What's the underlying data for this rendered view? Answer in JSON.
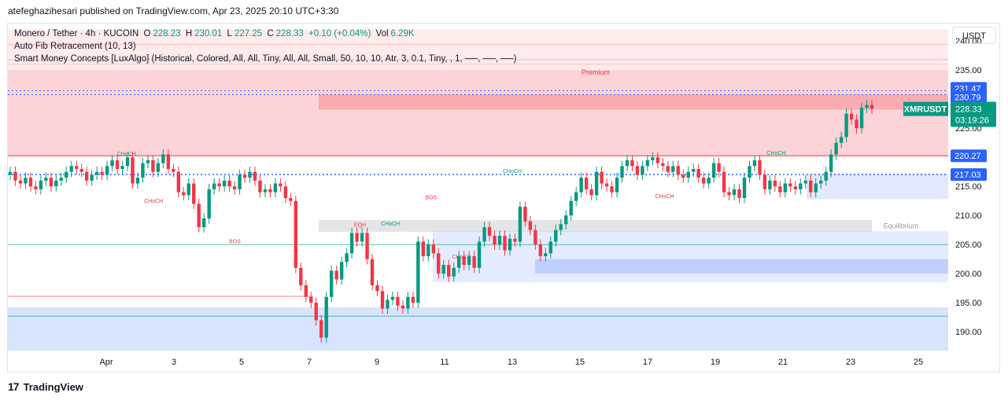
{
  "publisher": "atefeghazihesari published on TradingView.com, Apr 23, 2025 20:10 UTC+3:30",
  "legend": {
    "symbol": "Monero / Tether · 4h · KUCOIN",
    "open_label": "O",
    "open": "228.23",
    "high_label": "H",
    "high": "230.01",
    "low_label": "L",
    "low": "227.25",
    "close_label": "C",
    "close": "228.33",
    "change": "+0.10 (+0.04%)",
    "vol_label": "Vol",
    "vol": "6.29K",
    "indicator1": "Auto Fib Retracement (10, 13)",
    "indicator2": "Smart Money Concepts [LuxAlgo] (Historical, Colored, All, All, Tiny, All, All, Small, 50, 10, 10, Atr, 3, 0.1, Tiny, , 1, ──, ──, ──)"
  },
  "currency": "USDT",
  "footer": {
    "brand": "TradingView"
  },
  "colors": {
    "up": "#089981",
    "down": "#f23645",
    "dotted": "#2962ff",
    "premium": "#f23645",
    "discount": "#2962ff"
  },
  "chart_data": {
    "type": "candlestick",
    "symbol": "XMRUSDT",
    "ylim": [
      189,
      243
    ],
    "y_ticks": [
      240,
      235,
      230,
      225,
      220,
      215,
      210,
      205,
      200,
      195,
      190
    ],
    "x_ticks": [
      "Apr",
      "3",
      "5",
      "7",
      "9",
      "11",
      "13",
      "15",
      "17",
      "19",
      "21",
      "23",
      "25"
    ],
    "price_labels": [
      {
        "value": 231.47,
        "text": "231.47",
        "kind": "level"
      },
      {
        "value": 230.79,
        "text": "230.79",
        "kind": "level"
      },
      {
        "value": 228.33,
        "text": "228.33",
        "kind": "current",
        "countdown": "03:19:26"
      },
      {
        "value": 220.27,
        "text": "220.27",
        "kind": "level"
      },
      {
        "value": 217.03,
        "text": "217.03",
        "kind": "level"
      }
    ],
    "zone_labels": {
      "premium": "Premium",
      "equilibrium": "Equilibrium"
    },
    "structure_labels": [
      {
        "text": "CHoCH",
        "x": 1.6,
        "y": 220.3,
        "color": "up"
      },
      {
        "text": "CHoCH",
        "x": 2.4,
        "y": 212.2,
        "color": "down"
      },
      {
        "text": "BOS",
        "x": 4.8,
        "y": 205.2,
        "color": "down"
      },
      {
        "text": "EQH",
        "x": 8.5,
        "y": 208.1,
        "color": "down"
      },
      {
        "text": "CHoCH",
        "x": 9.4,
        "y": 208.3,
        "color": "up"
      },
      {
        "text": "BOS",
        "x": 10.6,
        "y": 212.8,
        "color": "down"
      },
      {
        "text": "CHoCH",
        "x": 11.5,
        "y": 202.6,
        "color": "down"
      },
      {
        "text": "CHoCH",
        "x": 13.0,
        "y": 217.3,
        "color": "up"
      },
      {
        "text": "CHoCH",
        "x": 17.5,
        "y": 213.0,
        "color": "down"
      },
      {
        "text": "CHoCH",
        "x": 20.8,
        "y": 220.4,
        "color": "up"
      }
    ],
    "candles_close": [
      217.5,
      216.0,
      215.5,
      216.5,
      215.0,
      214.5,
      216.0,
      216.5,
      215.0,
      216.0,
      216.5,
      217.5,
      218.5,
      218.0,
      217.5,
      216.0,
      217.0,
      217.5,
      217.0,
      218.5,
      219.5,
      218.0,
      218.5,
      220.0,
      215.5,
      216.5,
      219.0,
      219.5,
      217.5,
      219.0,
      220.5,
      218.0,
      217.5,
      214.0,
      213.5,
      215.5,
      212.0,
      208.0,
      209.5,
      214.5,
      215.5,
      215.0,
      216.0,
      215.0,
      214.5,
      217.0,
      216.5,
      217.5,
      216.0,
      214.0,
      214.5,
      214.0,
      215.5,
      215.0,
      213.0,
      212.5,
      201.0,
      198.0,
      196.0,
      195.0,
      192.0,
      189.0,
      196.0,
      200.5,
      199.0,
      202.0,
      203.5,
      207.0,
      205.5,
      207.0,
      202.5,
      198.0,
      197.0,
      194.0,
      195.5,
      196.0,
      194.5,
      194.0,
      196.0,
      195.0,
      205.5,
      203.0,
      205.0,
      203.5,
      200.0,
      201.5,
      199.5,
      201.0,
      203.0,
      201.5,
      203.0,
      201.0,
      205.5,
      208.0,
      206.5,
      205.0,
      206.5,
      204.0,
      206.0,
      205.5,
      211.5,
      209.0,
      207.5,
      205.0,
      203.0,
      203.5,
      205.5,
      207.5,
      208.5,
      210.0,
      212.5,
      214.0,
      216.5,
      214.5,
      213.5,
      217.5,
      215.5,
      215.0,
      214.0,
      216.5,
      218.5,
      219.5,
      218.5,
      217.0,
      218.5,
      219.5,
      220.0,
      219.0,
      218.5,
      217.5,
      218.5,
      217.0,
      216.5,
      217.5,
      218.0,
      216.5,
      215.5,
      216.5,
      219.0,
      217.5,
      214.0,
      213.5,
      214.5,
      213.0,
      216.5,
      218.5,
      219.5,
      217.0,
      214.5,
      216.0,
      215.0,
      214.0,
      215.5,
      215.0,
      214.5,
      215.5,
      216.0,
      214.0,
      215.5,
      216.0,
      217.5,
      220.5,
      222.5,
      223.5,
      227.5,
      226.5,
      225.0,
      228.5,
      229.0,
      228.33
    ]
  }
}
